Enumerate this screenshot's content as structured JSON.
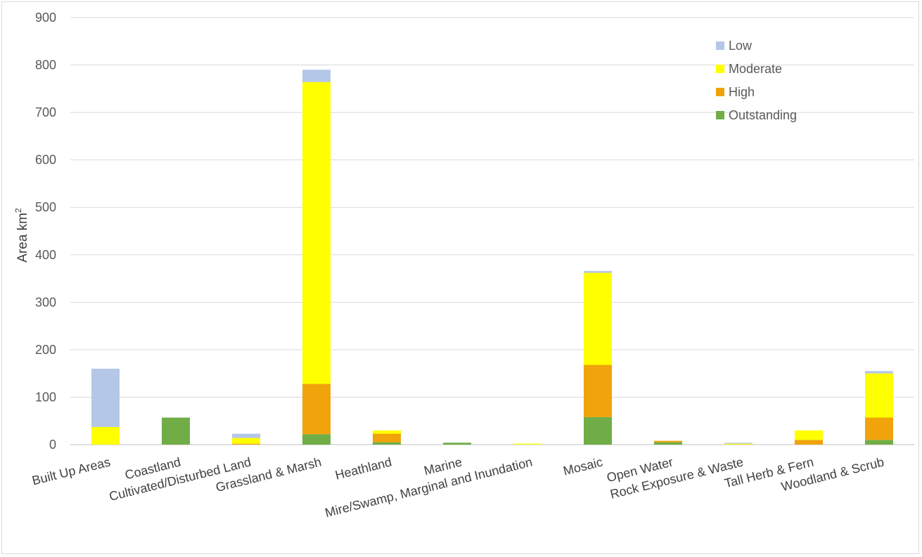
{
  "chart_data": {
    "type": "bar",
    "stacked": true,
    "title": "",
    "xlabel": "",
    "ylabel": "Area km",
    "ylabel_superscript": "2",
    "ylim": [
      0,
      900
    ],
    "yticks": [
      0,
      100,
      200,
      300,
      400,
      500,
      600,
      700,
      800,
      900
    ],
    "grid": true,
    "legend_position": "top-right",
    "categories": [
      "Built Up Areas",
      "Coastland",
      "Cultivated/Disturbed Land",
      "Grassland & Marsh",
      "Heathland",
      "Marine",
      "Mire/Swamp, Marginal and Inundation",
      "Mosaic",
      "Open Water",
      "Rock Exposure & Waste",
      "Tall Herb & Fern",
      "Woodland & Scrub"
    ],
    "series": [
      {
        "name": "Outstanding",
        "color": "#70ad47",
        "values": [
          0,
          57,
          0,
          22,
          5,
          4,
          0,
          58,
          5,
          0,
          0,
          10
        ]
      },
      {
        "name": "High",
        "color": "#f0a30a",
        "values": [
          0,
          0,
          2,
          106,
          18,
          0,
          0,
          110,
          3,
          0,
          10,
          47
        ]
      },
      {
        "name": "Moderate",
        "color": "#ffff00",
        "values": [
          37,
          0,
          12,
          636,
          7,
          0,
          2,
          194,
          0,
          2,
          20,
          93
        ]
      },
      {
        "name": "Low",
        "color": "#b4c7e7",
        "values": [
          123,
          0,
          9,
          26,
          0,
          0,
          0,
          4,
          0,
          2,
          0,
          5
        ]
      }
    ],
    "legend_order": [
      "Low",
      "Moderate",
      "High",
      "Outstanding"
    ]
  }
}
